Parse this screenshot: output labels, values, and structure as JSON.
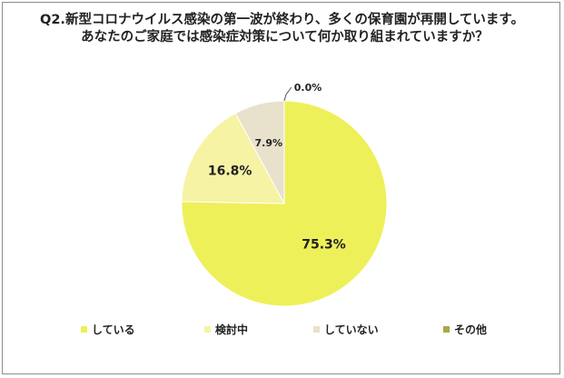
{
  "title_line1": "Q2.新型コロナウイルス感染の第一波が終わり、多くの保育園が再開しています。",
  "title_line2": "あなたのご家庭では感染症対策について何か取り組まれていますか？",
  "chart_data": {
    "type": "pie",
    "categories": [
      "している",
      "検討中",
      "していない",
      "その他"
    ],
    "values": [
      75.3,
      16.8,
      7.9,
      0.0
    ],
    "value_labels": [
      "75.3%",
      "16.8%",
      "7.9%",
      "0.0%"
    ],
    "colors": [
      "#eef05a",
      "#f6f3a4",
      "#e8e1cc",
      "#a9a64a"
    ],
    "start": "top, clockwise",
    "legend_position": "bottom"
  }
}
